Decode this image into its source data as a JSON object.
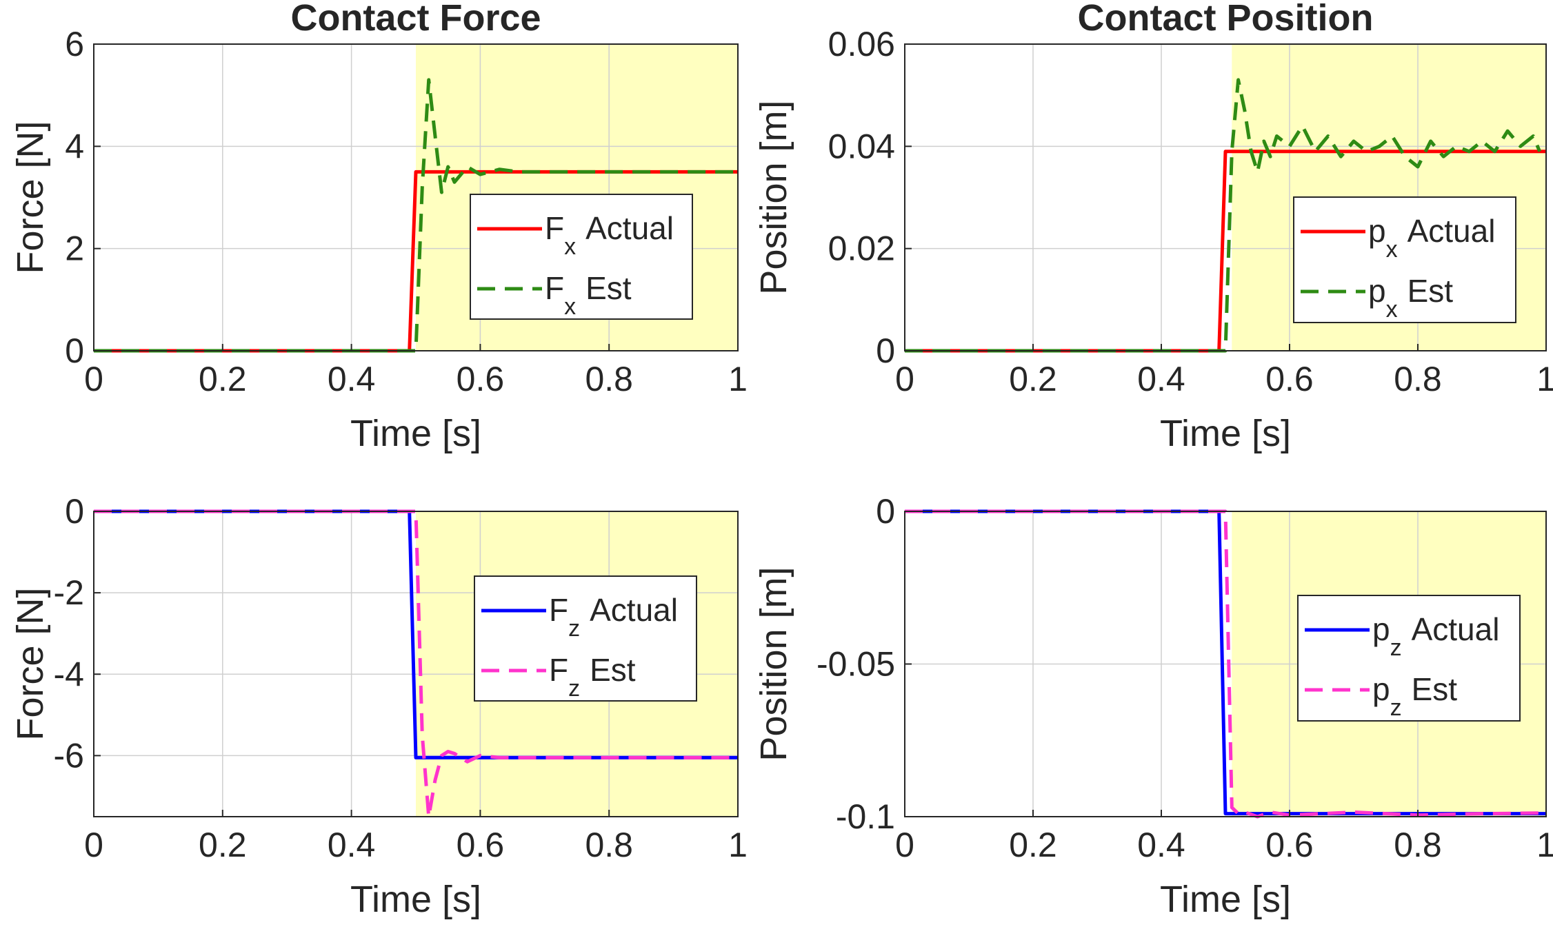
{
  "chart_data": [
    {
      "type": "line",
      "title": "Contact Force",
      "xlabel": "Time [s]",
      "ylabel": "Force [N]",
      "xlim": [
        0,
        1
      ],
      "ylim": [
        0,
        6
      ],
      "xticks": [
        0,
        0.2,
        0.4,
        0.6,
        0.8,
        1
      ],
      "yticks": [
        0,
        2,
        4,
        6
      ],
      "xtick_labels": [
        "0",
        "0.2",
        "0.4",
        "0.6",
        "0.8",
        "1"
      ],
      "ytick_labels": [
        "0",
        "2",
        "4",
        "6"
      ],
      "grid": true,
      "shaded_region": {
        "x": [
          0.5,
          1
        ],
        "color": "#ffffc0"
      },
      "legend": {
        "placement": "center-right",
        "entries": [
          {
            "base": "F",
            "sub": "x",
            "text": "Actual"
          },
          {
            "base": "F",
            "sub": "x",
            "text": "Est"
          }
        ]
      },
      "series": [
        {
          "name": "F_x Actual",
          "color": "#ff0000",
          "style": "solid",
          "x": [
            0,
            0.49,
            0.5,
            1
          ],
          "y": [
            0,
            0,
            3.5,
            3.5
          ]
        },
        {
          "name": "F_x Est",
          "color": "#2e8b14",
          "style": "dashed",
          "x": [
            0,
            0.5,
            0.51,
            0.52,
            0.53,
            0.54,
            0.55,
            0.56,
            0.58,
            0.6,
            0.63,
            0.66,
            0.7,
            1
          ],
          "y": [
            0,
            0,
            3.2,
            5.3,
            4.2,
            3.1,
            3.6,
            3.3,
            3.6,
            3.45,
            3.55,
            3.5,
            3.5,
            3.5
          ]
        }
      ]
    },
    {
      "type": "line",
      "title": "Contact Position",
      "xlabel": "Time [s]",
      "ylabel": "Position [m]",
      "xlim": [
        0,
        1
      ],
      "ylim": [
        0,
        0.06
      ],
      "xticks": [
        0,
        0.2,
        0.4,
        0.6,
        0.8,
        1
      ],
      "yticks": [
        0,
        0.02,
        0.04,
        0.06
      ],
      "xtick_labels": [
        "0",
        "0.2",
        "0.4",
        "0.6",
        "0.8",
        "1"
      ],
      "ytick_labels": [
        "0",
        "0.02",
        "0.04",
        "0.06"
      ],
      "grid": true,
      "shaded_region": {
        "x": [
          0.51,
          1
        ],
        "color": "#ffffc0"
      },
      "legend": {
        "placement": "center-right",
        "entries": [
          {
            "base": "p",
            "sub": "x",
            "text": "Actual"
          },
          {
            "base": "p",
            "sub": "x",
            "text": "Est"
          }
        ]
      },
      "series": [
        {
          "name": "p_x Actual",
          "color": "#ff0000",
          "style": "solid",
          "x": [
            0,
            0.49,
            0.5,
            1
          ],
          "y": [
            0,
            0,
            0.039,
            0.039
          ]
        },
        {
          "name": "p_x Est",
          "color": "#2e8b14",
          "style": "dashed",
          "x": [
            0,
            0.5,
            0.51,
            0.52,
            0.53,
            0.54,
            0.55,
            0.56,
            0.57,
            0.58,
            0.6,
            0.62,
            0.64,
            0.66,
            0.68,
            0.7,
            0.72,
            0.74,
            0.76,
            0.78,
            0.8,
            0.82,
            0.84,
            0.86,
            0.88,
            0.9,
            0.92,
            0.94,
            0.96,
            0.98,
            0.99
          ],
          "y": [
            0,
            0,
            0.039,
            0.053,
            0.047,
            0.039,
            0.035,
            0.041,
            0.038,
            0.042,
            0.04,
            0.044,
            0.039,
            0.042,
            0.038,
            0.041,
            0.039,
            0.04,
            0.042,
            0.038,
            0.036,
            0.041,
            0.038,
            0.04,
            0.039,
            0.041,
            0.039,
            0.043,
            0.04,
            0.042,
            0.039
          ]
        }
      ]
    },
    {
      "type": "line",
      "title": "",
      "xlabel": "Time [s]",
      "ylabel": "Force [N]",
      "xlim": [
        0,
        1
      ],
      "ylim": [
        -7.5,
        0
      ],
      "xticks": [
        0,
        0.2,
        0.4,
        0.6,
        0.8,
        1
      ],
      "yticks": [
        -6,
        -4,
        -2,
        0
      ],
      "xtick_labels": [
        "0",
        "0.2",
        "0.4",
        "0.6",
        "0.8",
        "1"
      ],
      "ytick_labels": [
        "-6",
        "-4",
        "-2",
        "0"
      ],
      "grid": true,
      "shaded_region": {
        "x": [
          0.5,
          1
        ],
        "color": "#ffffc0"
      },
      "legend": {
        "placement": "center-right",
        "entries": [
          {
            "base": "F",
            "sub": "z",
            "text": "Actual"
          },
          {
            "base": "F",
            "sub": "z",
            "text": "Est"
          }
        ]
      },
      "series": [
        {
          "name": "F_z Actual",
          "color": "#0000ff",
          "style": "solid",
          "x": [
            0,
            0.49,
            0.5,
            1
          ],
          "y": [
            0,
            0,
            -6.05,
            -6.05
          ]
        },
        {
          "name": "F_z Est",
          "color": "#ff33cc",
          "style": "dashed",
          "x": [
            0,
            0.5,
            0.51,
            0.52,
            0.53,
            0.54,
            0.55,
            0.56,
            0.58,
            0.6,
            0.63,
            0.66,
            1
          ],
          "y": [
            0,
            0,
            -5.5,
            -7.5,
            -6.6,
            -6.0,
            -5.9,
            -5.95,
            -6.15,
            -6.0,
            -6.05,
            -6.05,
            -6.05
          ]
        }
      ]
    },
    {
      "type": "line",
      "title": "",
      "xlabel": "Time [s]",
      "ylabel": "Position [m]",
      "xlim": [
        0,
        1
      ],
      "ylim": [
        -0.1,
        0
      ],
      "xticks": [
        0,
        0.2,
        0.4,
        0.6,
        0.8,
        1
      ],
      "yticks": [
        -0.1,
        -0.05,
        0
      ],
      "xtick_labels": [
        "0",
        "0.2",
        "0.4",
        "0.6",
        "0.8",
        "1"
      ],
      "ytick_labels": [
        "-0.1",
        "-0.05",
        "0"
      ],
      "grid": true,
      "shaded_region": {
        "x": [
          0.51,
          1
        ],
        "color": "#ffffc0"
      },
      "legend": {
        "placement": "center-right",
        "entries": [
          {
            "base": "p",
            "sub": "z",
            "text": "Actual"
          },
          {
            "base": "p",
            "sub": "z",
            "text": "Est"
          }
        ]
      },
      "series": [
        {
          "name": "p_z Actual",
          "color": "#0000ff",
          "style": "solid",
          "x": [
            0,
            0.49,
            0.5,
            1
          ],
          "y": [
            0,
            0,
            -0.099,
            -0.099
          ]
        },
        {
          "name": "p_z Est",
          "color": "#ff33cc",
          "style": "dashed",
          "x": [
            0,
            0.5,
            0.51,
            0.52,
            0.53,
            0.55,
            0.57,
            0.6,
            0.65,
            0.7,
            0.8,
            0.9,
            1
          ],
          "y": [
            0,
            0,
            -0.097,
            -0.099,
            -0.0985,
            -0.1,
            -0.0985,
            -0.0995,
            -0.099,
            -0.0985,
            -0.0995,
            -0.099,
            -0.0988
          ]
        }
      ]
    }
  ]
}
